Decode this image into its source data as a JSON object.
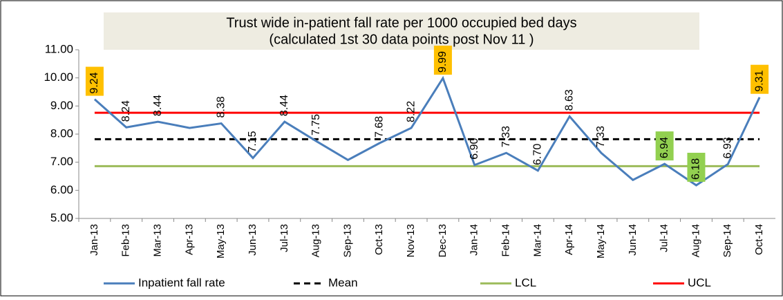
{
  "chart_data": {
    "type": "line",
    "title": "Trust wide in-patient fall rate per 1000 occupied bed days",
    "subtitle": "(calculated  1st 30 data points post Nov 11 )",
    "categories": [
      "Jan-13",
      "Feb-13",
      "Mar-13",
      "Apr-13",
      "May-13",
      "Jun-13",
      "Jul-13",
      "Aug-13",
      "Sep-13",
      "Oct-13",
      "Nov-13",
      "Dec-13",
      "Jan-14",
      "Feb-14",
      "Mar-14",
      "Apr-14",
      "May-14",
      "Jun-14",
      "Jul-14",
      "Aug-14",
      "Sep-14",
      "Oct-14"
    ],
    "series": [
      {
        "name": "Inpatient fall rate",
        "color": "#4a7ebb",
        "dash": false,
        "values": [
          9.24,
          8.24,
          8.44,
          8.22,
          8.38,
          7.15,
          8.44,
          7.75,
          7.08,
          7.68,
          8.22,
          9.99,
          6.9,
          7.33,
          6.7,
          8.63,
          7.33,
          6.37,
          6.94,
          6.18,
          6.93,
          9.31
        ],
        "value_labels": [
          "9.24",
          "8.24",
          "8.44",
          null,
          "8.38",
          "7.15",
          "8.44",
          "7.75",
          null,
          "7.68",
          "8.22",
          "9.99",
          "6.90",
          "7.33",
          "6.70",
          "8.63",
          "7.33",
          null,
          "6.94",
          "6.18",
          "6.93",
          "9.31"
        ],
        "value_label_colors": [
          "#ffc000",
          null,
          null,
          null,
          null,
          null,
          null,
          null,
          null,
          null,
          null,
          "#ffc000",
          null,
          null,
          null,
          null,
          null,
          null,
          "#92d050",
          "#92d050",
          null,
          "#ffc000"
        ]
      },
      {
        "name": "Mean",
        "color": "#000000",
        "dash": true,
        "values": [
          7.82,
          7.82,
          7.82,
          7.82,
          7.82,
          7.82,
          7.82,
          7.82,
          7.82,
          7.82,
          7.82,
          7.82,
          7.82,
          7.82,
          7.82,
          7.82,
          7.82,
          7.82,
          7.82,
          7.82,
          7.82,
          7.82
        ]
      },
      {
        "name": "LCL",
        "color": "#9bbb59",
        "dash": false,
        "values": [
          6.86,
          6.86,
          6.86,
          6.86,
          6.86,
          6.86,
          6.86,
          6.86,
          6.86,
          6.86,
          6.86,
          6.86,
          6.86,
          6.86,
          6.86,
          6.86,
          6.86,
          6.86,
          6.86,
          6.86,
          6.86,
          6.86
        ]
      },
      {
        "name": "UCL",
        "color": "#ff0000",
        "dash": false,
        "values": [
          8.76,
          8.76,
          8.76,
          8.76,
          8.76,
          8.76,
          8.76,
          8.76,
          8.76,
          8.76,
          8.76,
          8.76,
          8.76,
          8.76,
          8.76,
          8.76,
          8.76,
          8.76,
          8.76,
          8.76,
          8.76,
          8.76
        ]
      }
    ],
    "ylim": [
      5,
      11
    ],
    "yticks": [
      {
        "value": 5,
        "label": "5.00"
      },
      {
        "value": 6,
        "label": "6.00"
      },
      {
        "value": 7,
        "label": "7.00"
      },
      {
        "value": 8,
        "label": "8.00"
      },
      {
        "value": 9,
        "label": "9.00"
      },
      {
        "value": 10,
        "label": "10.00"
      },
      {
        "value": 11,
        "label": "11.00"
      }
    ],
    "grid": false,
    "legend": "bottom"
  }
}
